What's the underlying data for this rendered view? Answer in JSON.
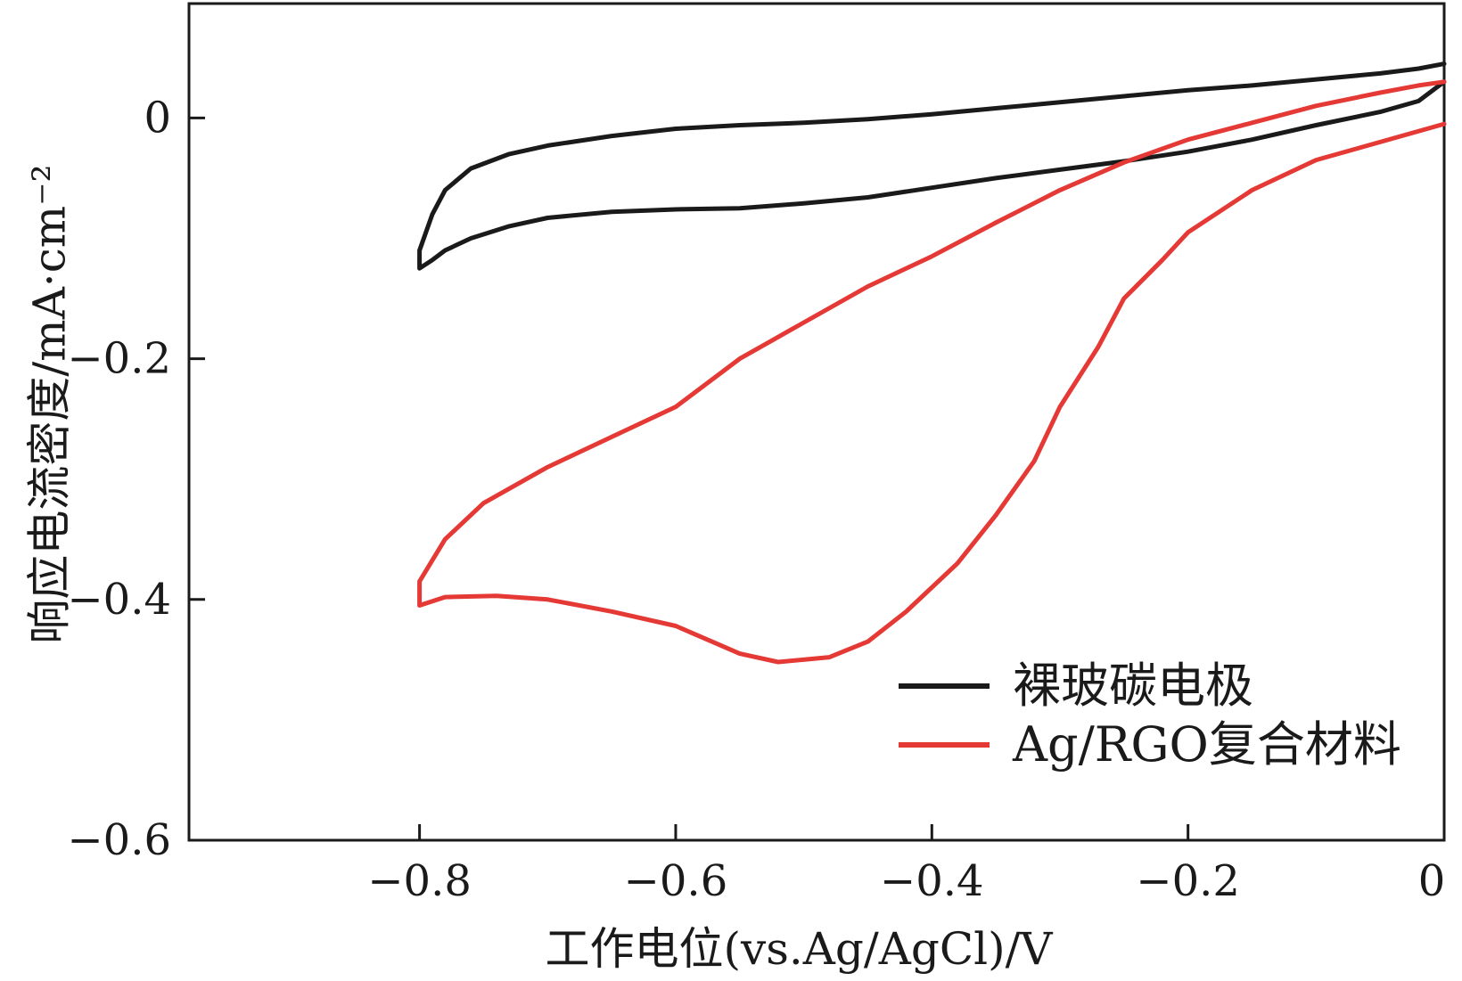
{
  "chart_data": {
    "type": "line",
    "title": "",
    "xlabel": "工作电位(vs.Ag/AgCl)/V",
    "ylabel": "响应电流密度/mA·cm⁻²",
    "xlim": [
      -0.98,
      0
    ],
    "ylim": [
      -0.6,
      0.095
    ],
    "xticks": [
      -0.8,
      -0.6,
      -0.4,
      -0.2,
      0
    ],
    "xtick_labels": [
      "−0.8",
      "−0.6",
      "−0.4",
      "−0.2",
      "0"
    ],
    "yticks": [
      0,
      -0.2,
      -0.4,
      -0.6
    ],
    "ytick_labels": [
      "0",
      "−0.2",
      "−0.4",
      "−0.6"
    ],
    "grid": false,
    "legend_position": "bottom-right",
    "series": [
      {
        "name": "裸玻碳电极",
        "color": "#1a1a1a",
        "x": [
          0,
          -0.02,
          -0.05,
          -0.1,
          -0.15,
          -0.2,
          -0.25,
          -0.3,
          -0.35,
          -0.4,
          -0.45,
          -0.5,
          -0.55,
          -0.6,
          -0.65,
          -0.7,
          -0.73,
          -0.76,
          -0.78,
          -0.79,
          -0.8,
          -0.8,
          -0.79,
          -0.78,
          -0.76,
          -0.73,
          -0.7,
          -0.65,
          -0.6,
          -0.55,
          -0.5,
          -0.45,
          -0.4,
          -0.35,
          -0.3,
          -0.25,
          -0.2,
          -0.15,
          -0.1,
          -0.05,
          -0.02,
          0
        ],
        "y": [
          0.045,
          0.041,
          0.037,
          0.032,
          0.027,
          0.023,
          0.018,
          0.013,
          0.008,
          0.003,
          -0.001,
          -0.004,
          -0.006,
          -0.009,
          -0.015,
          -0.023,
          -0.03,
          -0.042,
          -0.06,
          -0.08,
          -0.11,
          -0.125,
          -0.118,
          -0.11,
          -0.1,
          -0.09,
          -0.083,
          -0.078,
          -0.076,
          -0.075,
          -0.071,
          -0.066,
          -0.058,
          -0.05,
          -0.043,
          -0.036,
          -0.028,
          -0.018,
          -0.006,
          0.005,
          0.014,
          0.03
        ]
      },
      {
        "name": "Ag/RGO复合材料",
        "color": "#e53935",
        "x": [
          0,
          -0.02,
          -0.05,
          -0.1,
          -0.15,
          -0.2,
          -0.25,
          -0.3,
          -0.35,
          -0.4,
          -0.45,
          -0.5,
          -0.55,
          -0.6,
          -0.65,
          -0.7,
          -0.75,
          -0.78,
          -0.8,
          -0.8,
          -0.78,
          -0.74,
          -0.7,
          -0.65,
          -0.6,
          -0.55,
          -0.52,
          -0.48,
          -0.45,
          -0.42,
          -0.38,
          -0.35,
          -0.32,
          -0.3,
          -0.27,
          -0.25,
          -0.22,
          -0.2,
          -0.15,
          -0.1,
          -0.05,
          0
        ],
        "y": [
          0.03,
          0.027,
          0.021,
          0.01,
          -0.004,
          -0.018,
          -0.037,
          -0.06,
          -0.087,
          -0.115,
          -0.14,
          -0.17,
          -0.2,
          -0.24,
          -0.265,
          -0.29,
          -0.32,
          -0.35,
          -0.385,
          -0.405,
          -0.398,
          -0.397,
          -0.4,
          -0.41,
          -0.422,
          -0.445,
          -0.452,
          -0.448,
          -0.435,
          -0.41,
          -0.37,
          -0.33,
          -0.285,
          -0.24,
          -0.19,
          -0.15,
          -0.118,
          -0.095,
          -0.06,
          -0.035,
          -0.02,
          -0.005
        ]
      }
    ]
  }
}
